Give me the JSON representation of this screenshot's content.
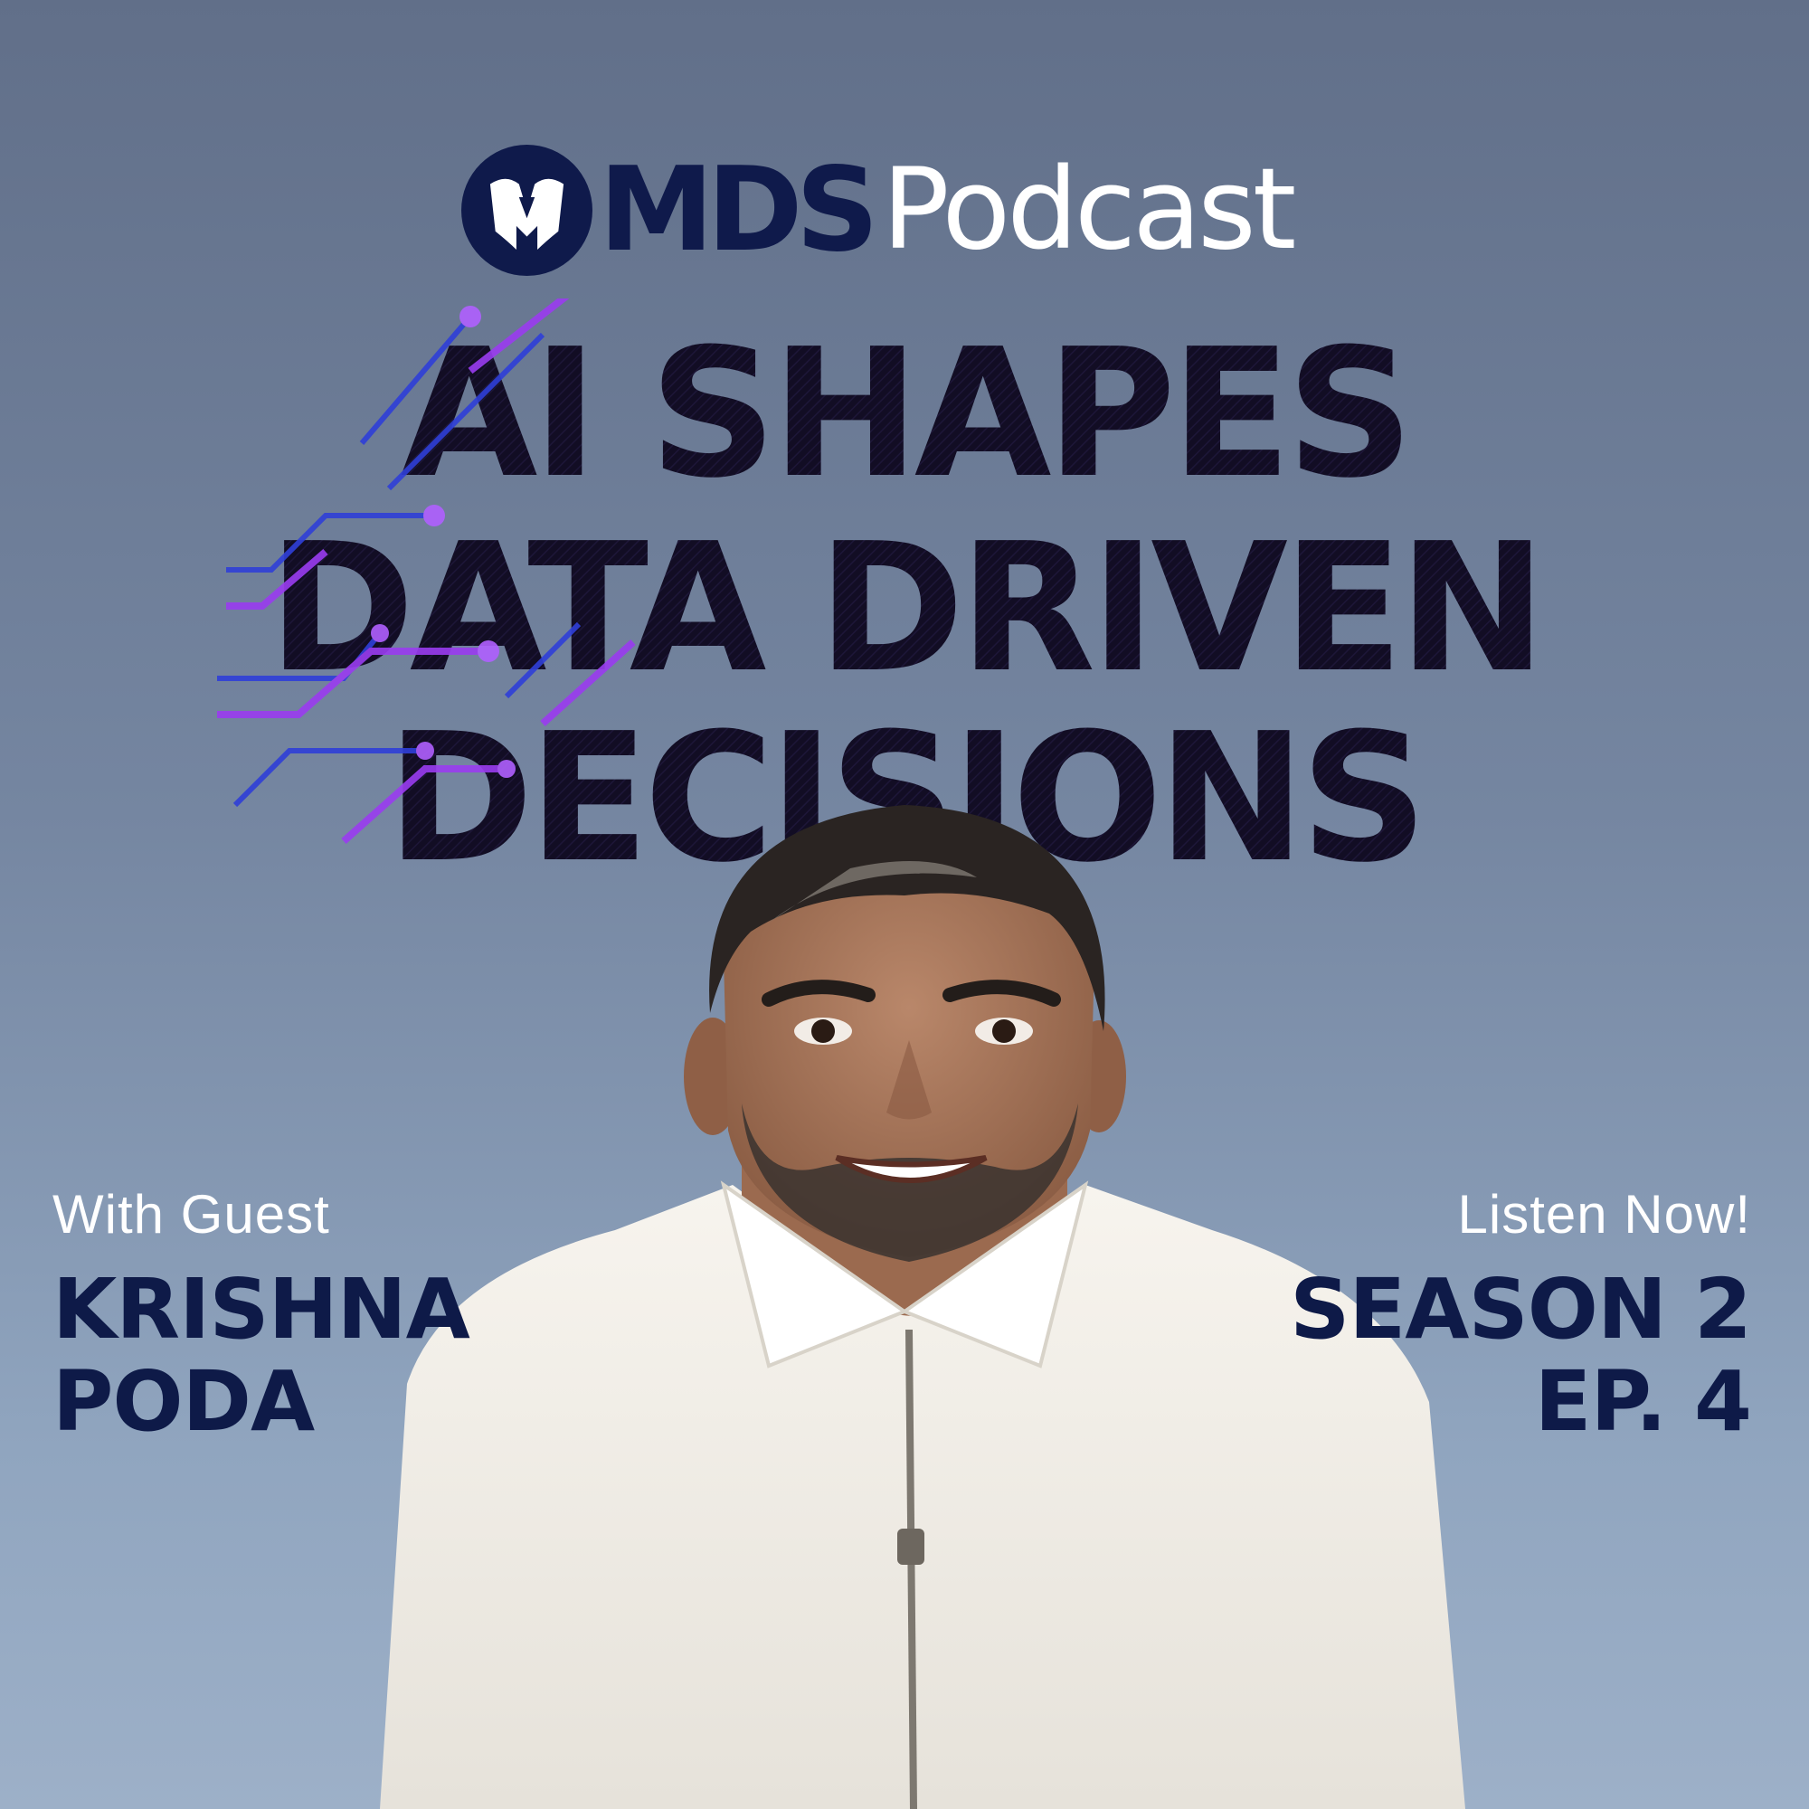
{
  "logo": {
    "mds": "MDS",
    "podcast": "Podcast"
  },
  "headline": {
    "line1": "AI SHAPES",
    "line2": "DATA DRIVEN",
    "line3": "DECISIONS"
  },
  "guest": {
    "intro": "With Guest",
    "first_name": "KRISHNA",
    "last_name": "PODA"
  },
  "episode": {
    "cta": "Listen Now!",
    "season": "SEASON 2",
    "number": "EP. 4"
  },
  "colors": {
    "background_top": "#616f89",
    "background_bottom": "#9db0c8",
    "navy": "#0f1a4b",
    "circuit_blue": "#2f3fd8",
    "circuit_purple": "#9a3cf0",
    "white": "#ffffff"
  },
  "icons": [
    "mds-helmet-badge-icon"
  ]
}
